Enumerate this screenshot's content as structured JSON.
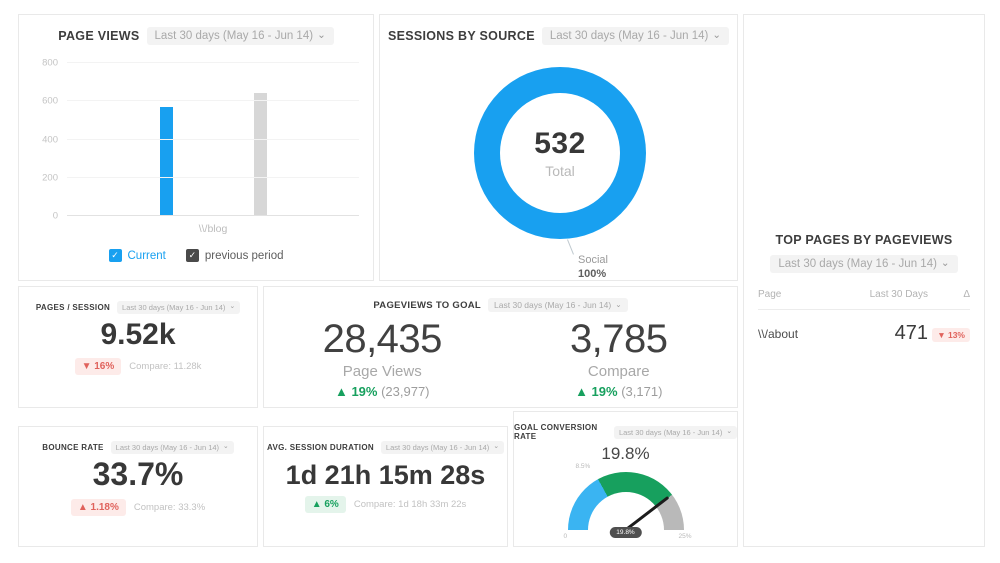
{
  "colors": {
    "blue": "#18a0f0",
    "green": "#17a05e",
    "green_bg": "#e4f4eb",
    "red": "#e0625c",
    "red_bg": "#fdebe9",
    "gray_bar": "#d7d7d7",
    "gauge_gray": "#b9b9b9"
  },
  "icons": {
    "dropdown_chevron": "⌄",
    "checkbox_check": "✓"
  },
  "cards": {
    "page_views": {
      "title": "PAGE VIEWS",
      "date_range": "Last 30 days (May 16 - Jun 14)",
      "legend": {
        "current_label": "Current",
        "previous_label": "previous period"
      }
    },
    "sessions_by_source": {
      "title": "SESSIONS BY SOURCE",
      "date_range": "Last 30 days (May 16 - Jun 14)",
      "total_value": "532",
      "total_label": "Total",
      "slice_name": "Social",
      "slice_pct": "100%"
    },
    "top_pages": {
      "title": "TOP PAGES BY PAGEVIEWS",
      "date_range": "Last 30 days (May 16 - Jun 14)",
      "columns": [
        "Page",
        "Last 30 Days",
        "Δ"
      ],
      "rows": [
        {
          "page": "\\\\/about",
          "value": "471",
          "delta": "▼ 13%"
        }
      ]
    },
    "pages_per_session": {
      "title": "PAGES / SESSION",
      "date_range": "Last 30 days (May 16 - Jun 14)",
      "value": "9.52k",
      "delta": "▼ 16%",
      "compare": "Compare: 11.28k"
    },
    "pageviews_to_goal": {
      "title": "PAGEVIEWS TO GOAL",
      "date_range": "Last 30 days (May 16 - Jun 14)",
      "metrics": [
        {
          "value": "28,435",
          "label": "Page Views",
          "delta": "▲ 19%",
          "delta_detail": "(23,977)"
        },
        {
          "value": "3,785",
          "label": "Compare",
          "delta": "▲ 19%",
          "delta_detail": "(3,171)"
        }
      ]
    },
    "bounce_rate": {
      "title": "BOUNCE RATE",
      "date_range": "Last 30 days (May 16 - Jun 14)",
      "value": "33.7%",
      "delta": "▲ 1.18%",
      "compare": "Compare: 33.3%"
    },
    "avg_session_duration": {
      "title": "AVG. SESSION DURATION",
      "date_range": "Last 30 days (May 16 - Jun 14)",
      "value": "1d 21h 15m 28s",
      "delta": "▲ 6%",
      "compare": "Compare: 1d 18h 33m 22s"
    },
    "goal_conversion_rate": {
      "title": "GOAL CONVERSION RATE",
      "date_range": "Last 30 days (May 16 - Jun 14)",
      "value": "19.8%",
      "gauge": {
        "min_label": "0",
        "max_label": "25%",
        "marker_label": "8.5%",
        "needle_label": "19.8%"
      }
    }
  },
  "chart_data": [
    {
      "type": "bar",
      "title": "PAGE VIEWS",
      "categories": [
        "\\\\/blog"
      ],
      "series": [
        {
          "name": "Current",
          "values": [
            570
          ],
          "color": "#18a0f0"
        },
        {
          "name": "previous period",
          "values": [
            645
          ],
          "color": "#d7d7d7"
        }
      ],
      "ylim": [
        0,
        800
      ],
      "yticks": [
        0,
        200,
        400,
        600,
        800
      ],
      "grid": true,
      "legend_position": "bottom"
    },
    {
      "type": "pie",
      "title": "SESSIONS BY SOURCE",
      "labels": [
        "Social"
      ],
      "values": [
        100
      ],
      "total": 532,
      "center_label": "Total",
      "donut": true
    },
    {
      "type": "table",
      "title": "TOP PAGES BY PAGEVIEWS",
      "columns": [
        "Page",
        "Last 30 Days",
        "Δ"
      ],
      "rows": [
        [
          "\\\\/about",
          471,
          "-13%"
        ]
      ]
    },
    {
      "type": "gauge",
      "title": "GOAL CONVERSION RATE",
      "value": 19.8,
      "min": 0,
      "max": 25,
      "marker": 8.5,
      "segments": [
        {
          "from": 0,
          "to": 8.5,
          "color": "#3ab4f2"
        },
        {
          "from": 8.5,
          "to": 19.8,
          "color": "#17a05e"
        },
        {
          "from": 19.8,
          "to": 25,
          "color": "#b9b9b9"
        }
      ]
    }
  ]
}
